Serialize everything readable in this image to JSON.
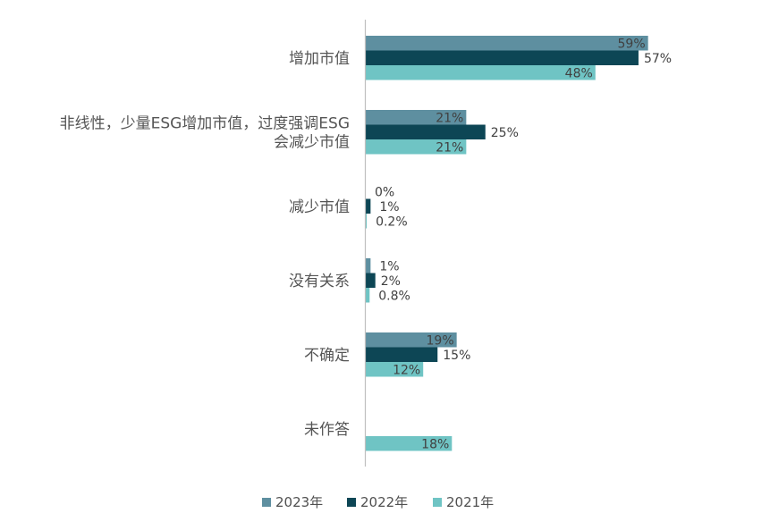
{
  "chart_data": {
    "type": "bar",
    "orientation": "horizontal",
    "categories": [
      [
        "增加市值"
      ],
      [
        "非线性，少量ESG增加市值，过度强调ESG",
        "会减少市值"
      ],
      [
        "减少市值"
      ],
      [
        "没有关系"
      ],
      [
        "不确定"
      ],
      [
        "未作答"
      ]
    ],
    "series": [
      {
        "name": "2023年",
        "color": "#5e8fa0",
        "values": [
          59,
          21,
          0,
          1,
          19,
          null
        ],
        "labels": [
          "59%",
          "21%",
          "0%",
          "1%",
          "19%",
          ""
        ]
      },
      {
        "name": "2022年",
        "color": "#0d4655",
        "values": [
          57,
          25,
          1,
          2,
          15,
          null
        ],
        "labels": [
          "57%",
          "25%",
          "1%",
          "2%",
          "15%",
          ""
        ]
      },
      {
        "name": "2021年",
        "color": "#6fc4c4",
        "values": [
          48,
          21,
          0.2,
          0.8,
          12,
          18
        ],
        "labels": [
          "48%",
          "21%",
          "0.2%",
          "0.8%",
          "12%",
          "18%"
        ]
      }
    ],
    "xlim": [
      0,
      75
    ],
    "legend_position": "bottom",
    "grid": false
  }
}
